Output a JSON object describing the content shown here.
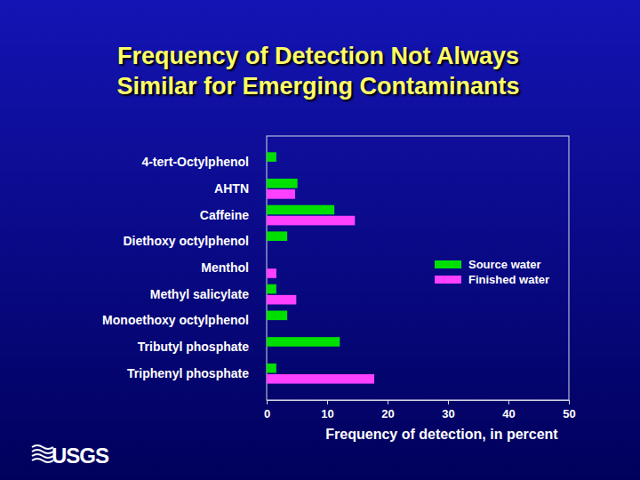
{
  "chart_data": {
    "type": "bar",
    "orientation": "horizontal",
    "title": "Frequency of Detection Not Always\nSimilar for Emerging Contaminants",
    "x_label": "Frequency of detection, in percent",
    "categories": [
      "4-tert-Octylphenol",
      "AHTN",
      "Caffeine",
      "Diethoxy octylphenol",
      "Menthol",
      "Methyl salicylate",
      "Monoethoxy octylphenol",
      "Tributyl phosphate",
      "Triphenyl phosphate"
    ],
    "series": [
      {
        "name": "Source water",
        "color": "#00e000",
        "values": [
          1.6,
          5.1,
          11.2,
          3.4,
          null,
          1.6,
          3.4,
          12.1,
          1.6
        ]
      },
      {
        "name": "Finished water",
        "color": "#ff40ff",
        "values": [
          null,
          4.7,
          14.6,
          null,
          1.6,
          4.9,
          null,
          null,
          17.8
        ]
      }
    ],
    "xlim": [
      0,
      50
    ],
    "xticks": [
      0,
      10,
      20,
      30,
      40,
      50
    ],
    "legend": "right",
    "grid": false,
    "annotations": [
      "USGS"
    ]
  }
}
